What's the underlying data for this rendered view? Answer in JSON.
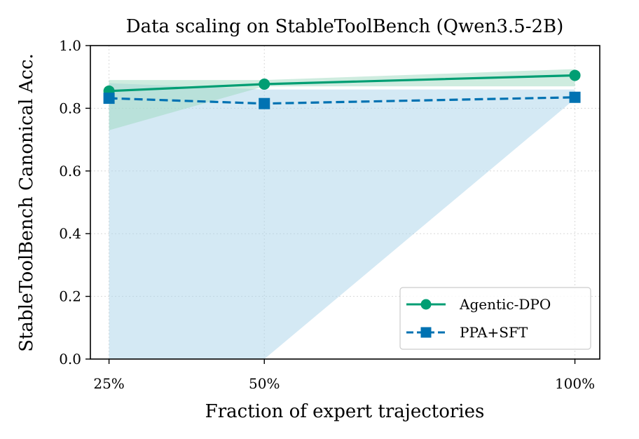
{
  "chart_data": {
    "type": "line",
    "title": "Data scaling on StableToolBench (Qwen3.5-2B)",
    "xlabel": "Fraction of expert trajectories",
    "ylabel": "StableToolBench Canonical Acc.",
    "x": [
      25,
      50,
      100
    ],
    "x_tick_labels": [
      "25%",
      "50%",
      "100%"
    ],
    "y_ticks": [
      "0.0",
      "0.2",
      "0.4",
      "0.6",
      "0.8",
      "1.0"
    ],
    "y_tick_values": [
      0.0,
      0.2,
      0.4,
      0.6,
      0.8,
      1.0
    ],
    "xlim": [
      22,
      104
    ],
    "ylim": [
      0.0,
      1.0
    ],
    "grid": true,
    "legend_position": "lower-right",
    "series": [
      {
        "name": "Agentic-DPO",
        "values": [
          0.855,
          0.877,
          0.905
        ],
        "band_low": [
          0.73,
          0.87,
          0.87
        ],
        "band_high": [
          0.89,
          0.89,
          0.925
        ],
        "color": "#009E73",
        "band_color": "#9DD9C0",
        "marker": "circle",
        "linestyle": "solid"
      },
      {
        "name": "PPA+SFT",
        "values": [
          0.832,
          0.815,
          0.835
        ],
        "band_low": [
          0.0,
          0.0,
          0.83
        ],
        "band_high": [
          0.88,
          0.86,
          0.86
        ],
        "color": "#0072B2",
        "band_color": "#A9D3EA",
        "marker": "square",
        "linestyle": "dashed"
      }
    ]
  }
}
